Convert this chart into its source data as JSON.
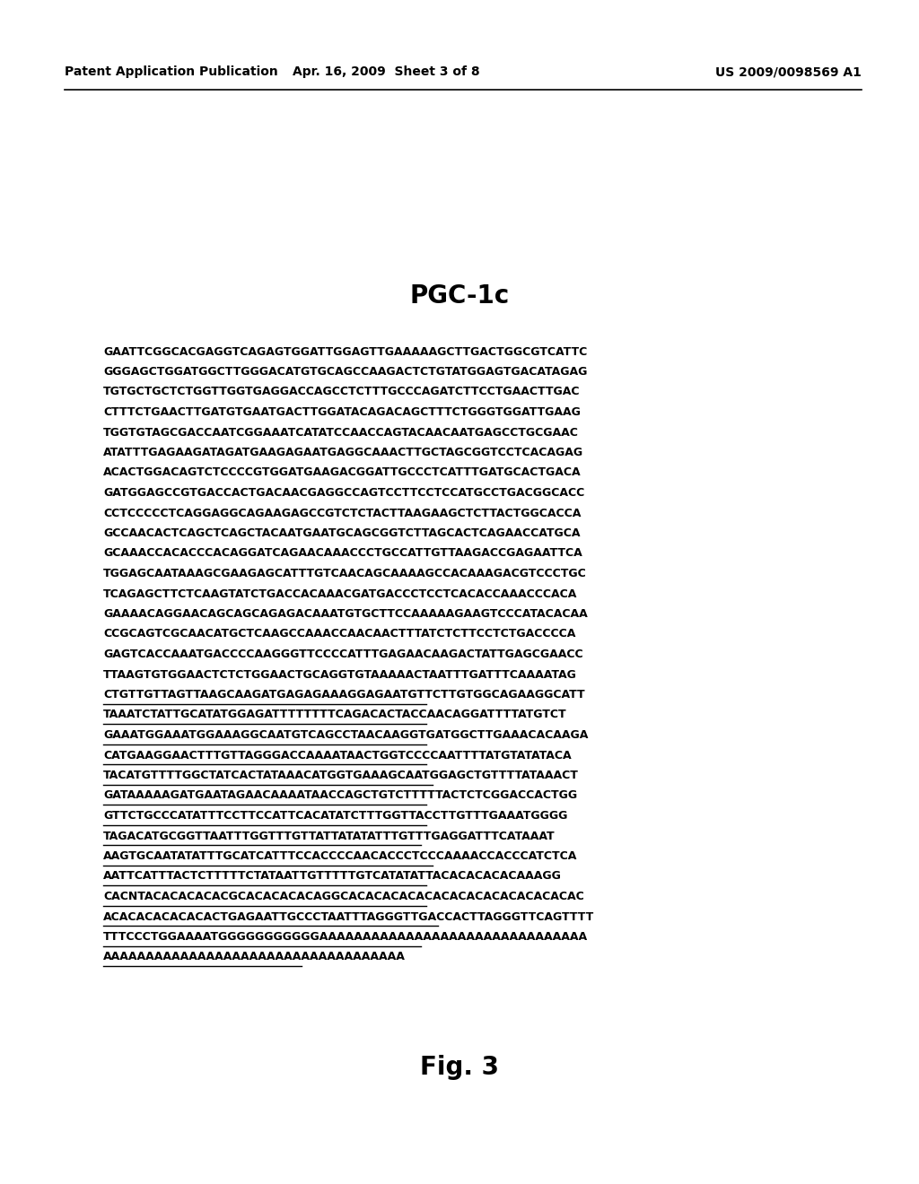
{
  "header_left": "Patent Application Publication",
  "header_center": "Apr. 16, 2009  Sheet 3 of 8",
  "header_right": "US 2009/0098569 A1",
  "title": "PGC-1c",
  "figure_label": "Fig. 3",
  "background_color": "#ffffff",
  "text_color": "#000000",
  "sequence_lines": [
    {
      "text": "GAATTCGGCACGAGGTCAGAGTGGATTGGAGTTGAAAAAGCTTGACTGGCGTCATTC",
      "underline": false
    },
    {
      "text": "GGGAGCTGGATGGCTTGGGACATGTGCAGCCAAGACTCTGTATGGAGTGACATAGAG",
      "underline": false
    },
    {
      "text": "TGTGCTGCTCTGGTTGGTGAGGACCAGCCTCTTTGCCCAGATCTTCCTGAACTTGAC",
      "underline": false
    },
    {
      "text": "CTTTCTGAACTTGATGTGAATGACTTGGATACAGACAGCTTTCTGGGTGGATTGAAG",
      "underline": false
    },
    {
      "text": "TGGTGTAGCGACCAATCGGAAATCATATCCAACCAGTACAACAATGAGCCTGCGAAC",
      "underline": false
    },
    {
      "text": "ATATTTGAGAAGATAGATGAAGAGAATGAGGCAAACTTGCTAGCGGTCCTCACAGAG",
      "underline": false
    },
    {
      "text": "ACACTGGACAGTCTCCCCGTGGATGAAGACGGATTGCCCTCATTTGATGCACTGACA",
      "underline": false
    },
    {
      "text": "GATGGAGCCGTGACCACTGACAACGAGGCCAGTCCTTCCTCCATGCCTGACGGCACC",
      "underline": false
    },
    {
      "text": "CCTCCCCCTCAGGAGGCAGAAGAGCCGTCTCTACTTAAGAAGCTCTTACTGGCACCA",
      "underline": false
    },
    {
      "text": "GCCAACACTCAGCTCAGCTACAATGAATGCAGCGGTCTTAGCACTCAGAACCATGCA",
      "underline": false
    },
    {
      "text": "GCAAACCACACCCACAGGATCAGAACAAACCCTGCCATTGTTAAGACCGAGAATTCA",
      "underline": false
    },
    {
      "text": "TGGAGCAATAAAGCGAAGAGCATTTGTCAACAGCAAAAGCCACAAAGACGTCCCTGC",
      "underline": false
    },
    {
      "text": "TCAGAGCTTCTCAAGTATCTGACCACAAACGATGACCCTCCTCACACCAAACCCACA",
      "underline": false
    },
    {
      "text": "GAAAACAGGAACAGCAGCAGAGACAAATGTGCTTCCAAAAAGAAGTCCCATACACAA",
      "underline": false
    },
    {
      "text": "CCGCAGTCGCAACATGCTCAAGCCAAACCAACAACTTTATCTCTTCCTCTGACCCCA",
      "underline": false
    },
    {
      "text": "GAGTCACCAAATGACCCCAAGGGTTCCCCATTTGAGAACAAGACTATTGAGCGAACC",
      "underline": false
    },
    {
      "text": "TTAAGTGTGGAACTCTCTGGAACTGCAGGTGTAAAAACTAATTTGATTTCAAAATAG",
      "underline": false
    },
    {
      "text": "CTGTTGTTAGTTAAGCAAGATGAGAGAAAGGAGAATGTTCTTGTGGCAGAAGGCATT",
      "underline": true
    },
    {
      "text": "TAAATCTATTGCATATGGAGATTTTTTTTCAGACACTACCAACAGGATTTTATGTCT",
      "underline": true
    },
    {
      "text": "GAAATGGAAATGGAAAGGCAATGTCAGCCTAACAAGGTGATGGCTTGAAACACAAGA",
      "underline": true
    },
    {
      "text": "CATGAAGGAACTTTGTTAGGGACCAAAATAACTGGTCCCCAATTTTATGTATATACA",
      "underline": true
    },
    {
      "text": "TACATGTTTTGGCTATCACTATAAACATGGTGAAAGCAATGGAGCTGTTTTATAAACT",
      "underline": true
    },
    {
      "text": "GATAAAAAGATGAATAGAACAAAATAACCAGCTGTCTTTTTACTCTCGGACCACTGG",
      "underline": true
    },
    {
      "text": "GTTCTGCCCATATTTCCTTCCATTCACATATCTTTGGTTACCTTGTTTGAAATGGGG",
      "underline": true
    },
    {
      "text": "TAGACATGCGGTTAATTTGGTTTGTTATTATATATTTGTTTGAGGATTTCATAAAT",
      "underline": true
    },
    {
      "text": "AAGTGCAATATATTTGCATCATTTCCACCCCAACACCCTCCCAAAACCACCCATCTCA",
      "underline": true
    },
    {
      "text": "AATTCATTTACTCTTTTTCTATAATTGTTTTTGTCATATATTACACACACACAAAGG",
      "underline": true
    },
    {
      "text": "CACNTACACACACACGCACACACACAGGCACACACACACACACACACACACACACAC",
      "underline": true
    },
    {
      "text": "ACACACACACACACTGAGAATTGCCCTAATTTAGGGTTGACCACTTAGGGTTCAGTTTT",
      "underline": true
    },
    {
      "text": "TTTCCCTGGAAAATGGGGGGGGGGGAAAAAAAAAAAAAAAAAAAAAAAAAAAAAAA",
      "underline": true
    },
    {
      "text": "AAAAAAAAAAAAAAAAAAAAAAAAAAAAAAAAAAA",
      "underline": true
    }
  ]
}
